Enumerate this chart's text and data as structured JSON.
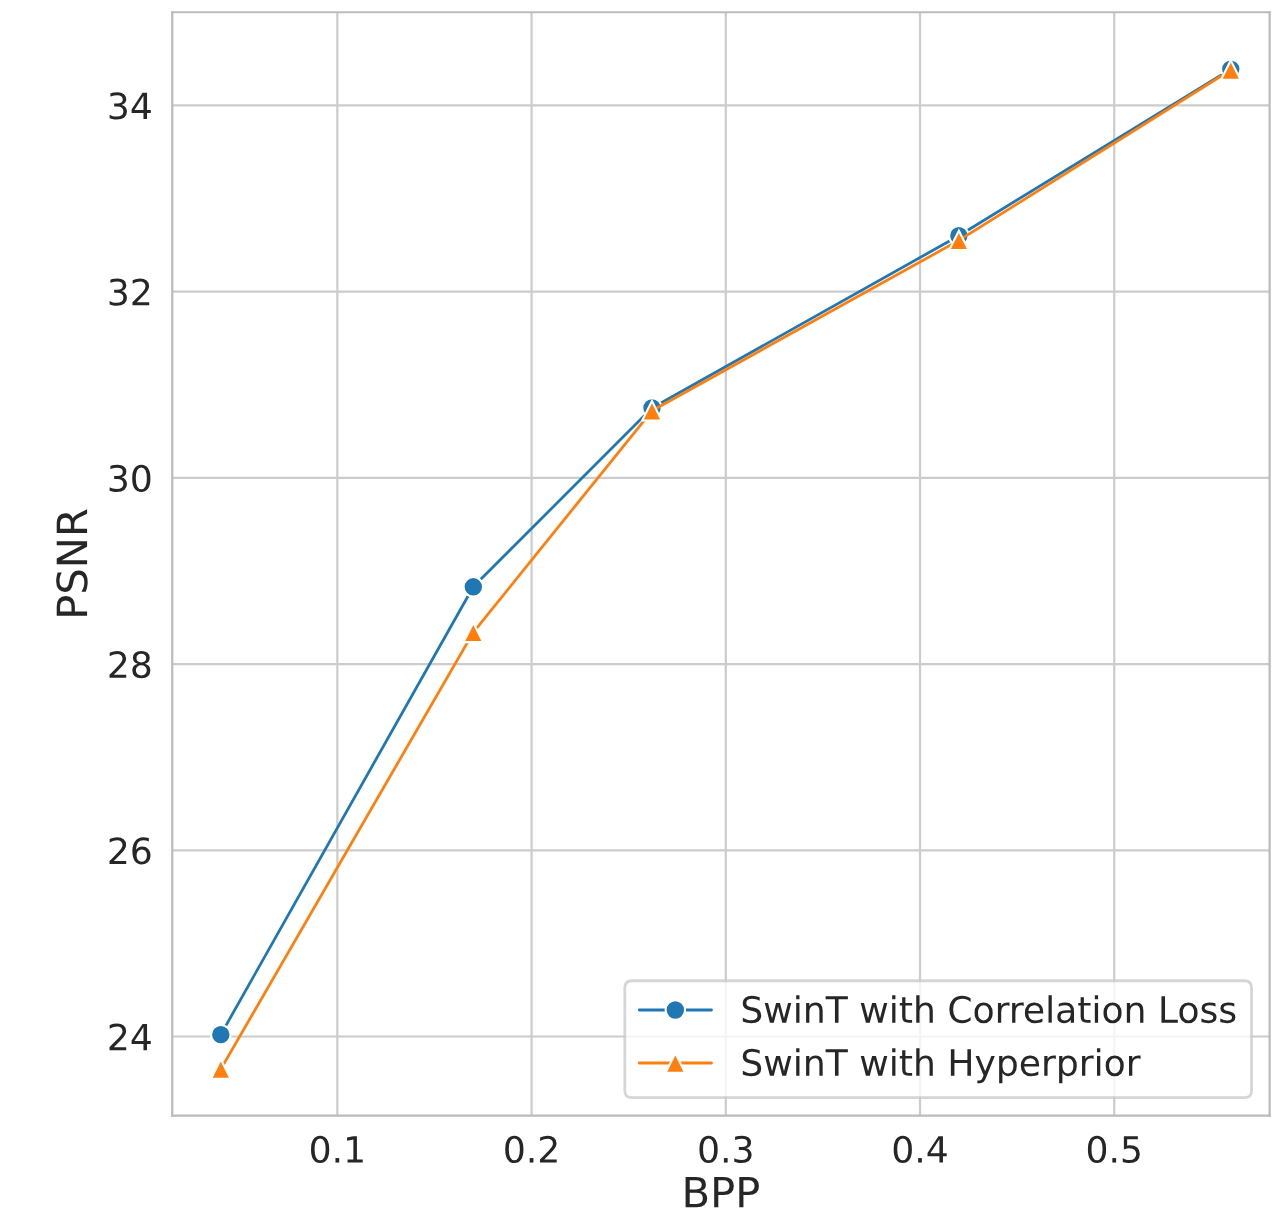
{
  "chart_data": {
    "type": "line",
    "xlabel": "BPP",
    "ylabel": "PSNR",
    "x": [
      0.04,
      0.17,
      0.262,
      0.42,
      0.56
    ],
    "series": [
      {
        "name": "SwinT with Correlation Loss",
        "color": "#1f77b4",
        "marker": "circle",
        "values": [
          24.02,
          28.83,
          30.75,
          32.6,
          34.39
        ]
      },
      {
        "name": "SwinT with Hyperprior",
        "color": "#ff7f0e",
        "marker": "triangle",
        "values": [
          23.65,
          28.34,
          30.72,
          32.55,
          34.38
        ]
      }
    ],
    "xlim": [
      0.015,
      0.58
    ],
    "xticks": [
      0.1,
      0.2,
      0.3,
      0.4,
      0.5
    ],
    "ylim": [
      23.15,
      35.0
    ],
    "yticks": [
      24,
      26,
      28,
      30,
      32,
      34
    ],
    "grid": true,
    "legend": "bottom right",
    "line_style": "solid"
  }
}
